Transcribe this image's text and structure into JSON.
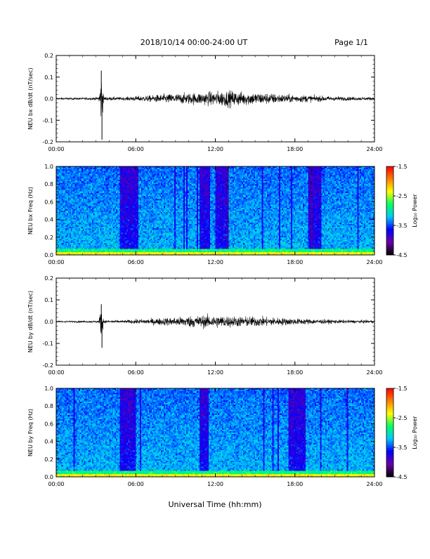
{
  "header": {
    "title": "2018/10/14  00:00-24:00 UT",
    "page_label": "Page 1/1"
  },
  "xlabel_global": "Universal Time (hh:mm)",
  "colorbar": {
    "label": "Log₁₀ Power",
    "ticks": [
      "-1.5",
      "-2.5",
      "-3.5",
      "-4.5"
    ],
    "range": [
      -4.5,
      -1.5
    ],
    "colors": [
      "#000000",
      "#6a00a8",
      "#0000ff",
      "#00c8ff",
      "#00ff64",
      "#ffff00",
      "#ff8000",
      "#ff0000"
    ]
  },
  "chart_data": [
    {
      "type": "line",
      "ylabel": "NEU bx dB/dt (nT/sec)",
      "xlim": [
        0,
        24
      ],
      "ylim": [
        -0.2,
        0.2
      ],
      "xticks": [
        "00:00",
        "06:00",
        "12:00",
        "18:00",
        "24:00"
      ],
      "yticks": [
        "0.2",
        "0.1",
        "0.0",
        "-0.1",
        "-0.2"
      ],
      "envelope": {
        "hours": [
          0,
          2,
          3.2,
          3.4,
          3.6,
          5,
          6,
          7,
          8,
          9,
          10,
          11,
          12,
          13,
          14,
          15,
          16,
          17,
          18,
          19,
          20,
          21,
          22,
          23,
          24
        ],
        "amplitude": [
          0.008,
          0.009,
          0.012,
          0.2,
          0.015,
          0.012,
          0.02,
          0.025,
          0.035,
          0.04,
          0.045,
          0.05,
          0.06,
          0.065,
          0.055,
          0.05,
          0.045,
          0.035,
          0.03,
          0.028,
          0.022,
          0.018,
          0.015,
          0.013,
          0.012
        ]
      },
      "spikes": [
        {
          "x": 3.4,
          "y": 0.13
        },
        {
          "x": 3.45,
          "y": -0.19
        }
      ]
    },
    {
      "type": "heatmap",
      "ylabel": "NEU bx Freq (Hz)",
      "xlim": [
        0,
        24
      ],
      "ylim": [
        0,
        1.0
      ],
      "xticks": [
        "00:00",
        "06:00",
        "12:00",
        "18:00",
        "24:00"
      ],
      "yticks": [
        "1.0",
        "0.8",
        "0.6",
        "0.4",
        "0.2",
        "0.0"
      ],
      "dark_bands_hours": [
        [
          4.8,
          6.2
        ],
        [
          10.8,
          11.6
        ],
        [
          12.0,
          13.0
        ],
        [
          19.0,
          20.0
        ]
      ]
    },
    {
      "type": "line",
      "ylabel": "NEU by dB/dt (nT/sec)",
      "xlim": [
        0,
        24
      ],
      "ylim": [
        -0.2,
        0.2
      ],
      "xticks": [
        "00:00",
        "06:00",
        "12:00",
        "18:00",
        "24:00"
      ],
      "yticks": [
        "0.2",
        "0.1",
        "0.0",
        "-0.1",
        "-0.2"
      ],
      "envelope": {
        "hours": [
          0,
          2,
          3.2,
          3.4,
          3.6,
          5,
          6,
          7,
          8,
          9,
          10,
          11,
          12,
          13,
          14,
          15,
          16,
          17,
          18,
          19,
          20,
          21,
          22,
          23,
          24
        ],
        "amplitude": [
          0.006,
          0.007,
          0.009,
          0.12,
          0.012,
          0.01,
          0.018,
          0.022,
          0.03,
          0.035,
          0.045,
          0.05,
          0.05,
          0.045,
          0.04,
          0.04,
          0.035,
          0.03,
          0.025,
          0.022,
          0.018,
          0.015,
          0.013,
          0.012,
          0.011
        ]
      },
      "spikes": [
        {
          "x": 3.4,
          "y": 0.08
        },
        {
          "x": 3.45,
          "y": -0.12
        }
      ]
    },
    {
      "type": "heatmap",
      "ylabel": "NEU by Freq (Hz)",
      "xlim": [
        0,
        24
      ],
      "ylim": [
        0,
        1.0
      ],
      "xticks": [
        "00:00",
        "06:00",
        "12:00",
        "18:00",
        "24:00"
      ],
      "yticks": [
        "1.0",
        "0.8",
        "0.6",
        "0.4",
        "0.2",
        "0.0"
      ],
      "dark_bands_hours": [
        [
          4.8,
          6.0
        ],
        [
          10.8,
          11.5
        ],
        [
          17.5,
          18.8
        ]
      ]
    }
  ]
}
